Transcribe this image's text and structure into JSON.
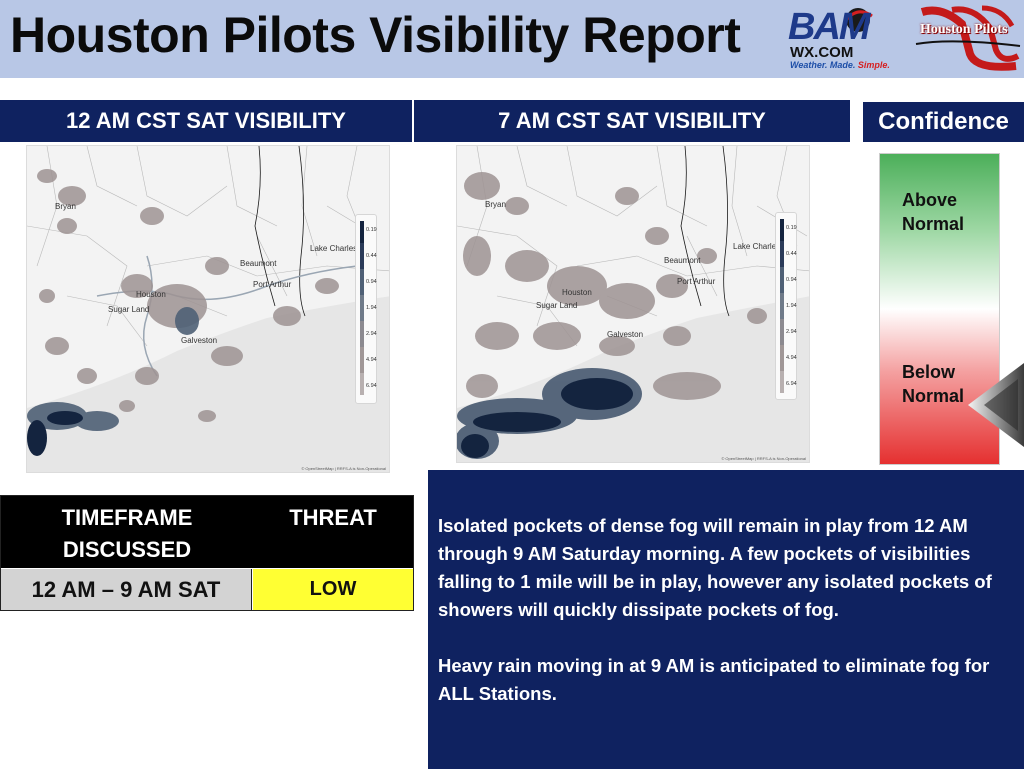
{
  "header": {
    "title": "Houston Pilots Visibility Report",
    "logo_bam": {
      "word": "BAM",
      "wx": "WX.COM",
      "tag_a": "Weather. Made.",
      "tag_b": "Simple."
    },
    "logo_partner": "Houston Pilots"
  },
  "panels": {
    "left_title": "12 AM CST SAT VISIBILITY",
    "mid_title": "7 AM CST SAT VISIBILITY",
    "confidence_title": "Confidence"
  },
  "maps": {
    "left": {
      "places": [
        "Bryan",
        "Lake Charles",
        "Beaumont",
        "Port Arthur",
        "Houston",
        "Sugar Land",
        "Galveston"
      ],
      "legend_ticks": [
        "0.19",
        "0.44",
        "0.94",
        "1.94",
        "2.94",
        "4.94",
        "6.94"
      ],
      "attribution": "© OpenStreetMap | RRFS-A is Non-Operational"
    },
    "mid": {
      "places": [
        "Bryan",
        "Lake Charles",
        "Beaumont",
        "Port Arthur",
        "Houston",
        "Sugar Land",
        "Galveston"
      ],
      "legend_ticks": [
        "0.19",
        "0.44",
        "0.94",
        "1.94",
        "2.94",
        "4.94",
        "6.94"
      ],
      "attribution": "© OpenStreetMap | RRFS-A is Non-Operational"
    },
    "colors": {
      "dense_fog": "#14243f",
      "moderate_fog": "#4f6076",
      "light_fog": "#9e9393",
      "land": "#f3f3f3",
      "water": "#e6e6e6"
    }
  },
  "confidence": {
    "above_label": "Above Normal",
    "below_label": "Below Normal",
    "level": "Below Normal"
  },
  "threat_table": {
    "col1_header": "TIMEFRAME DISCUSSED",
    "col2_header": "THREAT",
    "timeframe": "12 AM – 9 AM SAT",
    "threat": "LOW",
    "threat_color": "#ffff33"
  },
  "discussion": {
    "para1": "Isolated pockets of dense fog will remain in play from 12 AM through 9 AM Saturday morning. A few pockets of visibilities falling to 1 mile will be in play, however any isolated pockets of showers will quickly dissipate pockets of fog.",
    "para2": "Heavy rain moving in at 9 AM is anticipated to eliminate fog for ALL Stations."
  }
}
